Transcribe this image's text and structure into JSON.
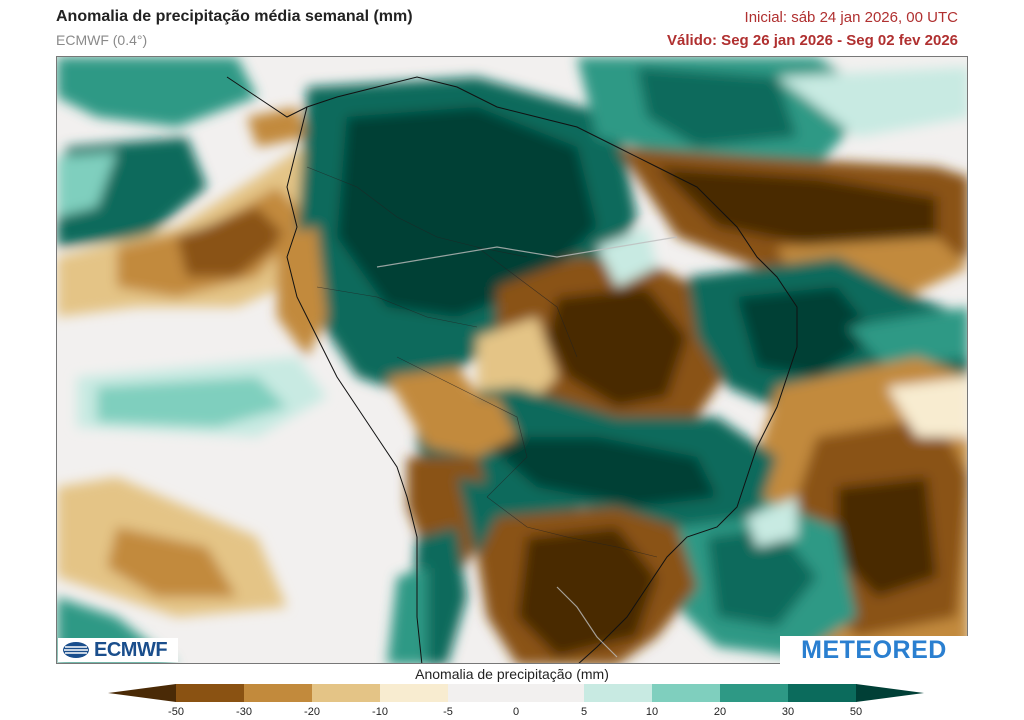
{
  "header": {
    "title": "Anomalia de precipitação média semanal (mm)",
    "model": "ECMWF (0.4°)",
    "initial": "Inicial:  sáb 24 jan 2026, 00 UTC",
    "valid": "Válido: Seg 26 jan 2026 - Seg 02 fev 2026"
  },
  "logos": {
    "left": "ECMWF",
    "right": "METEORED"
  },
  "colorbar": {
    "title": "Anomalia de precipitação (mm)",
    "ticks": [
      "-50",
      "-30",
      "-20",
      "-10",
      "-5",
      "0",
      "5",
      "10",
      "20",
      "30",
      "50"
    ],
    "colors": [
      "#4a2a06",
      "#8a5212",
      "#c28a3c",
      "#e4c486",
      "#f8ecd0",
      "#f2f0ef",
      "#f2f0ef",
      "#c8eae2",
      "#7fcfbe",
      "#2e9985",
      "#0b6b5c",
      "#003f36"
    ]
  }
}
